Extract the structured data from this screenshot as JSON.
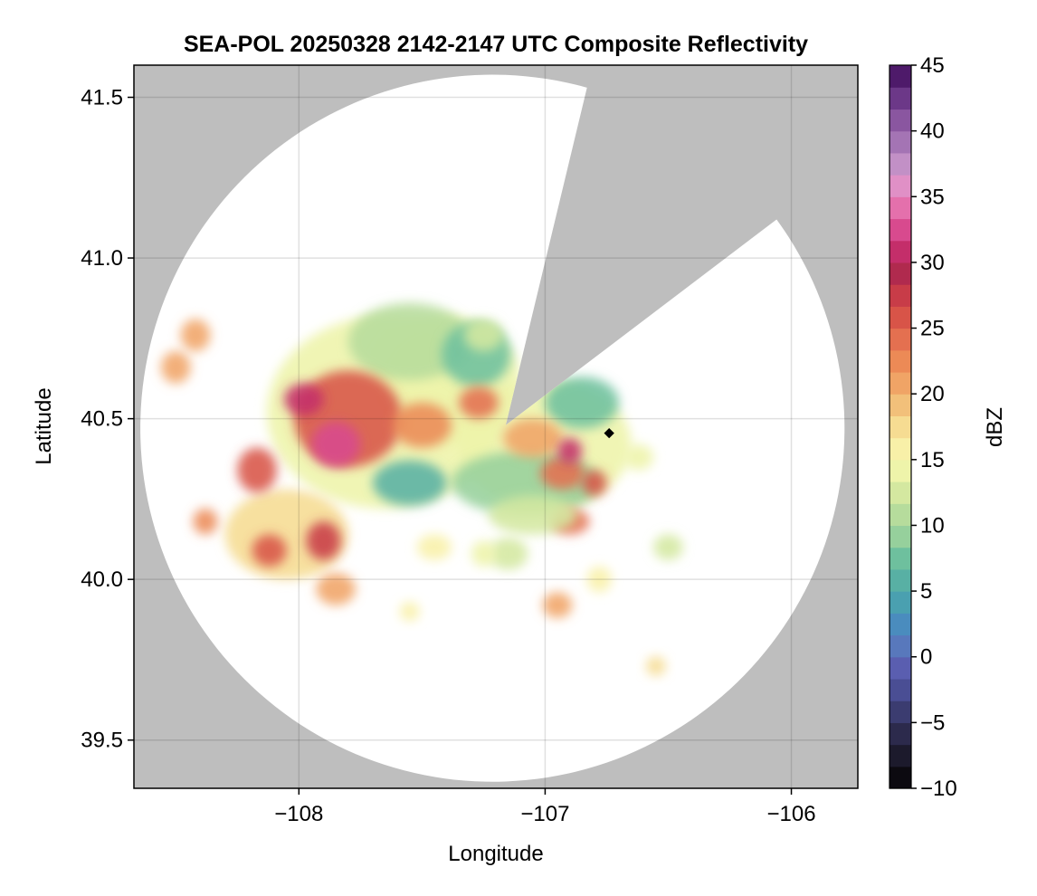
{
  "chart_data": {
    "type": "heatmap",
    "title": "SEA-POL 20250328 2142-2147 UTC Composite Reflectivity",
    "xlabel": "Longitude",
    "ylabel": "Latitude",
    "xlim": [
      -108.67,
      -105.73
    ],
    "ylim": [
      39.35,
      41.6
    ],
    "xticks": [
      -108,
      -107,
      -106
    ],
    "xtick_labels": [
      "−108",
      "−107",
      "−106"
    ],
    "yticks": [
      39.5,
      40.0,
      40.5,
      41.0,
      41.5
    ],
    "ytick_labels": [
      "39.5",
      "40.0",
      "40.5",
      "41.0",
      "41.5"
    ],
    "grid": true,
    "background_color": "#bebebe",
    "coverage_color": "#ffffff",
    "radar": {
      "center_lon": -107.16,
      "center_lat": 40.48,
      "range_lon_deg": 1.43,
      "range_lat_deg": 1.1,
      "blocked_sectors": [
        {
          "from_lon": -106.83,
          "from_lat": 41.53,
          "to_lon": -106.06,
          "to_lat": 41.12
        }
      ]
    },
    "marker": {
      "lon": -106.74,
      "lat": 40.455,
      "color": "#000000"
    },
    "colorbar": {
      "label": "dBZ",
      "min": -10,
      "max": 45,
      "step": 2,
      "ticks": [
        -10,
        -5,
        0,
        5,
        10,
        15,
        20,
        25,
        30,
        35,
        40,
        45
      ],
      "tick_labels": [
        "−10",
        "−5",
        "0",
        "5",
        "10",
        "15",
        "20",
        "25",
        "30",
        "35",
        "40",
        "45"
      ],
      "colors": [
        "#0c0a10",
        "#1c1a2c",
        "#2c2a4c",
        "#3b3c70",
        "#4a4e94",
        "#5a5eb0",
        "#5878bc",
        "#4a8cbe",
        "#4aa0b0",
        "#58b0a4",
        "#6ec09e",
        "#96d09c",
        "#b6dc9c",
        "#d4e8a0",
        "#eef4aa",
        "#f8f0a8",
        "#f6dc92",
        "#f2c07a",
        "#f0a466",
        "#ec8a56",
        "#e47050",
        "#d85448",
        "#c83c48",
        "#b02a4e",
        "#c42e6a",
        "#d84a8e",
        "#e470ac",
        "#e090c6",
        "#c290c6",
        "#a474b4",
        "#8a56a0",
        "#6c3888",
        "#4e1a6a"
      ]
    },
    "echo_cells": [
      {
        "lon": -107.65,
        "lat": 40.52,
        "rx": 0.48,
        "ry": 0.3,
        "dbz": 14
      },
      {
        "lon": -107.4,
        "lat": 40.62,
        "rx": 0.3,
        "ry": 0.2,
        "dbz": 14
      },
      {
        "lon": -107.55,
        "lat": 40.74,
        "rx": 0.25,
        "ry": 0.12,
        "dbz": 11
      },
      {
        "lon": -107.0,
        "lat": 40.42,
        "rx": 0.35,
        "ry": 0.2,
        "dbz": 14
      },
      {
        "lon": -107.08,
        "lat": 40.3,
        "rx": 0.3,
        "ry": 0.1,
        "dbz": 9
      },
      {
        "lon": -106.85,
        "lat": 40.55,
        "rx": 0.15,
        "ry": 0.08,
        "dbz": 7
      },
      {
        "lon": -107.28,
        "lat": 40.7,
        "rx": 0.14,
        "ry": 0.1,
        "dbz": 8
      },
      {
        "lon": -107.55,
        "lat": 40.3,
        "rx": 0.15,
        "ry": 0.07,
        "dbz": 6
      },
      {
        "lon": -107.8,
        "lat": 40.5,
        "rx": 0.22,
        "ry": 0.15,
        "dbz": 26
      },
      {
        "lon": -107.85,
        "lat": 40.42,
        "rx": 0.1,
        "ry": 0.07,
        "dbz": 32
      },
      {
        "lon": -107.98,
        "lat": 40.56,
        "rx": 0.08,
        "ry": 0.05,
        "dbz": 30
      },
      {
        "lon": -107.5,
        "lat": 40.48,
        "rx": 0.12,
        "ry": 0.07,
        "dbz": 22
      },
      {
        "lon": -107.27,
        "lat": 40.55,
        "rx": 0.08,
        "ry": 0.05,
        "dbz": 24
      },
      {
        "lon": -107.05,
        "lat": 40.44,
        "rx": 0.12,
        "ry": 0.06,
        "dbz": 20
      },
      {
        "lon": -106.93,
        "lat": 40.33,
        "rx": 0.09,
        "ry": 0.05,
        "dbz": 24
      },
      {
        "lon": -106.9,
        "lat": 40.18,
        "rx": 0.08,
        "ry": 0.04,
        "dbz": 24
      },
      {
        "lon": -106.9,
        "lat": 40.4,
        "rx": 0.05,
        "ry": 0.04,
        "dbz": 30
      },
      {
        "lon": -106.8,
        "lat": 40.3,
        "rx": 0.05,
        "ry": 0.04,
        "dbz": 26
      },
      {
        "lon": -107.05,
        "lat": 40.2,
        "rx": 0.18,
        "ry": 0.06,
        "dbz": 13
      },
      {
        "lon": -107.15,
        "lat": 40.08,
        "rx": 0.08,
        "ry": 0.05,
        "dbz": 13
      },
      {
        "lon": -108.05,
        "lat": 40.14,
        "rx": 0.25,
        "ry": 0.14,
        "dbz": 18
      },
      {
        "lon": -107.9,
        "lat": 40.12,
        "rx": 0.07,
        "ry": 0.06,
        "dbz": 28
      },
      {
        "lon": -108.12,
        "lat": 40.09,
        "rx": 0.07,
        "ry": 0.05,
        "dbz": 26
      },
      {
        "lon": -108.17,
        "lat": 40.34,
        "rx": 0.08,
        "ry": 0.07,
        "dbz": 26
      },
      {
        "lon": -108.38,
        "lat": 40.18,
        "rx": 0.05,
        "ry": 0.04,
        "dbz": 22
      },
      {
        "lon": -108.5,
        "lat": 40.66,
        "rx": 0.06,
        "ry": 0.05,
        "dbz": 20
      },
      {
        "lon": -108.42,
        "lat": 40.76,
        "rx": 0.06,
        "ry": 0.05,
        "dbz": 20
      },
      {
        "lon": -107.85,
        "lat": 39.97,
        "rx": 0.08,
        "ry": 0.05,
        "dbz": 20
      },
      {
        "lon": -107.25,
        "lat": 40.08,
        "rx": 0.05,
        "ry": 0.04,
        "dbz": 14
      },
      {
        "lon": -106.78,
        "lat": 40.0,
        "rx": 0.05,
        "ry": 0.04,
        "dbz": 16
      },
      {
        "lon": -106.62,
        "lat": 40.38,
        "rx": 0.06,
        "ry": 0.04,
        "dbz": 14
      },
      {
        "lon": -106.5,
        "lat": 40.1,
        "rx": 0.06,
        "ry": 0.04,
        "dbz": 12
      },
      {
        "lon": -106.55,
        "lat": 39.73,
        "rx": 0.04,
        "ry": 0.03,
        "dbz": 18
      },
      {
        "lon": -106.95,
        "lat": 39.92,
        "rx": 0.06,
        "ry": 0.04,
        "dbz": 20
      },
      {
        "lon": -107.45,
        "lat": 40.1,
        "rx": 0.07,
        "ry": 0.04,
        "dbz": 16
      },
      {
        "lon": -107.55,
        "lat": 39.9,
        "rx": 0.04,
        "ry": 0.03,
        "dbz": 15
      },
      {
        "lon": -107.25,
        "lat": 40.76,
        "rx": 0.08,
        "ry": 0.05,
        "dbz": 12
      }
    ]
  }
}
